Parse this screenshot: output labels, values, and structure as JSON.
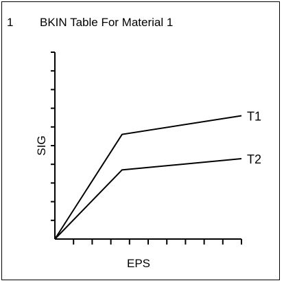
{
  "chart_data": {
    "type": "line",
    "plot_number": "1",
    "title": "BKIN Table For Material 1",
    "xlabel": "EPS",
    "ylabel": "SIG",
    "x_ticks": 10,
    "y_ticks": 10,
    "xlim": [
      0,
      10
    ],
    "ylim": [
      0,
      10
    ],
    "series": [
      {
        "name": "T1",
        "x": [
          0,
          3.6,
          10
        ],
        "y": [
          0,
          5.6,
          6.6
        ]
      },
      {
        "name": "T2",
        "x": [
          0,
          3.6,
          10
        ],
        "y": [
          0,
          3.7,
          4.3
        ]
      }
    ],
    "colors": {
      "line": "#000000",
      "axis": "#000000",
      "background": "#ffffff"
    }
  }
}
